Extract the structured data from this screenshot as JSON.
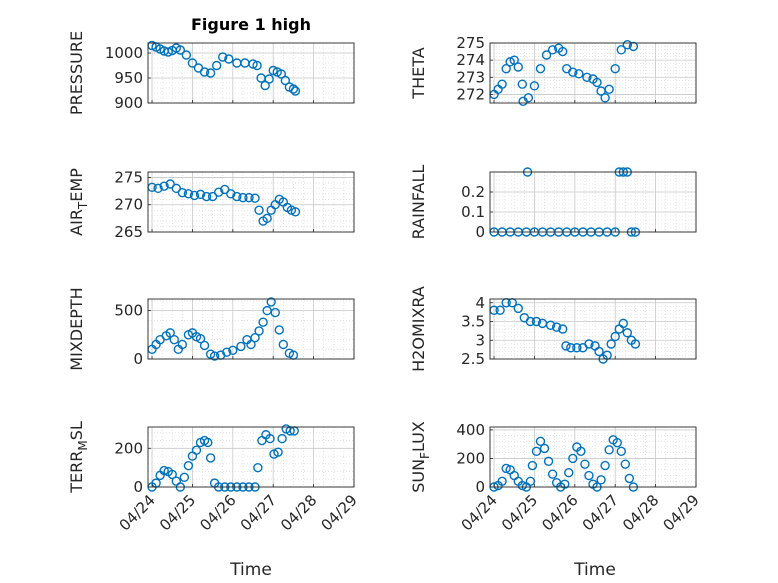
{
  "figure_title": "Figure 1 high",
  "x_label": "Time",
  "x_tick_labels": [
    "04/24",
    "04/25",
    "04/26",
    "04/27",
    "04/28",
    "04/29"
  ],
  "marker_color": "#0072BD",
  "chart_data": [
    {
      "type": "scatter",
      "name_main": "PRESSURE",
      "name_sub": "",
      "ylim": [
        900,
        1020
      ],
      "yticks": [
        900,
        950,
        1000
      ],
      "points": [
        [
          0.0,
          1015
        ],
        [
          0.1,
          1012
        ],
        [
          0.2,
          1008
        ],
        [
          0.3,
          1004
        ],
        [
          0.4,
          1002
        ],
        [
          0.5,
          1005
        ],
        [
          0.6,
          1010
        ],
        [
          0.7,
          1006
        ],
        [
          0.85,
          996
        ],
        [
          1.0,
          980
        ],
        [
          1.15,
          970
        ],
        [
          1.3,
          962
        ],
        [
          1.45,
          960
        ],
        [
          1.6,
          975
        ],
        [
          1.75,
          992
        ],
        [
          1.9,
          988
        ],
        [
          2.1,
          980
        ],
        [
          2.3,
          980
        ],
        [
          2.5,
          978
        ],
        [
          2.6,
          975
        ],
        [
          2.7,
          950
        ],
        [
          2.8,
          935
        ],
        [
          2.9,
          948
        ],
        [
          3.0,
          965
        ],
        [
          3.1,
          962
        ],
        [
          3.2,
          958
        ],
        [
          3.3,
          945
        ],
        [
          3.4,
          932
        ],
        [
          3.5,
          928
        ],
        [
          3.55,
          924
        ]
      ]
    },
    {
      "type": "scatter",
      "name_main": "THETA",
      "name_sub": "",
      "ylim": [
        271.5,
        275
      ],
      "yticks": [
        272,
        273,
        274,
        275
      ],
      "points": [
        [
          0.0,
          272.0
        ],
        [
          0.1,
          272.3
        ],
        [
          0.2,
          272.6
        ],
        [
          0.3,
          273.5
        ],
        [
          0.4,
          273.9
        ],
        [
          0.5,
          274.0
        ],
        [
          0.6,
          273.6
        ],
        [
          0.7,
          272.6
        ],
        [
          0.72,
          271.6
        ],
        [
          0.85,
          271.8
        ],
        [
          1.0,
          272.5
        ],
        [
          1.15,
          273.5
        ],
        [
          1.3,
          274.3
        ],
        [
          1.45,
          274.6
        ],
        [
          1.6,
          274.7
        ],
        [
          1.7,
          274.5
        ],
        [
          1.8,
          273.5
        ],
        [
          1.95,
          273.3
        ],
        [
          2.1,
          273.2
        ],
        [
          2.3,
          273.0
        ],
        [
          2.45,
          272.9
        ],
        [
          2.55,
          272.7
        ],
        [
          2.65,
          272.2
        ],
        [
          2.75,
          271.8
        ],
        [
          2.85,
          272.3
        ],
        [
          3.0,
          273.5
        ],
        [
          3.15,
          274.6
        ],
        [
          3.3,
          274.9
        ],
        [
          3.45,
          274.8
        ]
      ]
    },
    {
      "type": "scatter",
      "name_main": "AIR",
      "name_sub": "TEMP",
      "ylim": [
        265,
        276
      ],
      "yticks": [
        265,
        270,
        275
      ],
      "points": [
        [
          0.0,
          273.2
        ],
        [
          0.15,
          273.0
        ],
        [
          0.3,
          273.4
        ],
        [
          0.45,
          273.8
        ],
        [
          0.6,
          273.0
        ],
        [
          0.75,
          272.2
        ],
        [
          0.9,
          272.0
        ],
        [
          1.05,
          271.7
        ],
        [
          1.2,
          271.9
        ],
        [
          1.35,
          271.5
        ],
        [
          1.5,
          271.5
        ],
        [
          1.65,
          272.3
        ],
        [
          1.8,
          272.8
        ],
        [
          1.95,
          272.0
        ],
        [
          2.1,
          271.5
        ],
        [
          2.25,
          271.3
        ],
        [
          2.4,
          271.3
        ],
        [
          2.55,
          271.2
        ],
        [
          2.65,
          269.0
        ],
        [
          2.75,
          267.0
        ],
        [
          2.85,
          267.5
        ],
        [
          2.95,
          269.0
        ],
        [
          3.05,
          270.0
        ],
        [
          3.15,
          271.0
        ],
        [
          3.25,
          270.5
        ],
        [
          3.35,
          269.5
        ],
        [
          3.45,
          269.0
        ],
        [
          3.55,
          268.7
        ]
      ]
    },
    {
      "type": "scatter",
      "name_main": "RAINFALL",
      "name_sub": "",
      "ylim": [
        0,
        0.3
      ],
      "yticks": [
        0,
        0.1,
        0.2
      ],
      "points": [
        [
          0.0,
          0
        ],
        [
          0.2,
          0
        ],
        [
          0.4,
          0
        ],
        [
          0.6,
          0
        ],
        [
          0.8,
          0
        ],
        [
          0.83,
          0.3
        ],
        [
          1.0,
          0
        ],
        [
          1.2,
          0
        ],
        [
          1.4,
          0
        ],
        [
          1.6,
          0
        ],
        [
          1.8,
          0
        ],
        [
          2.0,
          0
        ],
        [
          2.2,
          0
        ],
        [
          2.4,
          0
        ],
        [
          2.6,
          0
        ],
        [
          2.8,
          0
        ],
        [
          3.0,
          0
        ],
        [
          3.1,
          0.3
        ],
        [
          3.2,
          0.3
        ],
        [
          3.3,
          0.3
        ],
        [
          3.4,
          0
        ],
        [
          3.5,
          0
        ]
      ]
    },
    {
      "type": "scatter",
      "name_main": "MIXDEPTH",
      "name_sub": "",
      "ylim": [
        0,
        620
      ],
      "yticks": [
        0,
        500
      ],
      "points": [
        [
          0.0,
          100
        ],
        [
          0.1,
          150
        ],
        [
          0.2,
          200
        ],
        [
          0.35,
          240
        ],
        [
          0.45,
          270
        ],
        [
          0.55,
          200
        ],
        [
          0.65,
          100
        ],
        [
          0.75,
          150
        ],
        [
          0.9,
          250
        ],
        [
          1.0,
          270
        ],
        [
          1.1,
          230
        ],
        [
          1.2,
          210
        ],
        [
          1.3,
          140
        ],
        [
          1.45,
          50
        ],
        [
          1.55,
          30
        ],
        [
          1.7,
          40
        ],
        [
          1.85,
          70
        ],
        [
          2.0,
          90
        ],
        [
          2.2,
          130
        ],
        [
          2.35,
          200
        ],
        [
          2.45,
          150
        ],
        [
          2.55,
          220
        ],
        [
          2.65,
          290
        ],
        [
          2.75,
          380
        ],
        [
          2.85,
          500
        ],
        [
          2.95,
          590
        ],
        [
          3.05,
          480
        ],
        [
          3.15,
          300
        ],
        [
          3.25,
          150
        ],
        [
          3.4,
          60
        ],
        [
          3.5,
          40
        ]
      ]
    },
    {
      "type": "scatter",
      "name_main": "H2OMIXRA",
      "name_sub": "",
      "ylim": [
        2.5,
        4.1
      ],
      "yticks": [
        2.5,
        3,
        3.5,
        4
      ],
      "points": [
        [
          0.0,
          3.8
        ],
        [
          0.15,
          3.8
        ],
        [
          0.3,
          4.0
        ],
        [
          0.45,
          4.0
        ],
        [
          0.6,
          3.85
        ],
        [
          0.75,
          3.6
        ],
        [
          0.9,
          3.5
        ],
        [
          1.05,
          3.5
        ],
        [
          1.2,
          3.45
        ],
        [
          1.4,
          3.4
        ],
        [
          1.55,
          3.35
        ],
        [
          1.7,
          3.3
        ],
        [
          1.78,
          2.85
        ],
        [
          1.9,
          2.8
        ],
        [
          2.05,
          2.8
        ],
        [
          2.2,
          2.8
        ],
        [
          2.35,
          2.9
        ],
        [
          2.5,
          2.85
        ],
        [
          2.6,
          2.7
        ],
        [
          2.7,
          2.5
        ],
        [
          2.8,
          2.6
        ],
        [
          2.9,
          2.9
        ],
        [
          3.0,
          3.1
        ],
        [
          3.1,
          3.3
        ],
        [
          3.2,
          3.45
        ],
        [
          3.3,
          3.2
        ],
        [
          3.4,
          3.0
        ],
        [
          3.5,
          2.9
        ]
      ]
    },
    {
      "type": "scatter",
      "name_main": "TERR",
      "name_sub": "MSL",
      "ylim": [
        0,
        310
      ],
      "yticks": [
        0,
        200
      ],
      "points": [
        [
          0.0,
          0
        ],
        [
          0.1,
          20
        ],
        [
          0.2,
          60
        ],
        [
          0.3,
          85
        ],
        [
          0.4,
          80
        ],
        [
          0.5,
          65
        ],
        [
          0.6,
          30
        ],
        [
          0.7,
          0
        ],
        [
          0.8,
          50
        ],
        [
          0.9,
          110
        ],
        [
          1.0,
          160
        ],
        [
          1.1,
          190
        ],
        [
          1.2,
          230
        ],
        [
          1.3,
          240
        ],
        [
          1.38,
          230
        ],
        [
          1.45,
          150
        ],
        [
          1.55,
          20
        ],
        [
          1.65,
          0
        ],
        [
          1.8,
          0
        ],
        [
          1.95,
          0
        ],
        [
          2.1,
          0
        ],
        [
          2.25,
          0
        ],
        [
          2.4,
          0
        ],
        [
          2.55,
          0
        ],
        [
          2.62,
          100
        ],
        [
          2.72,
          240
        ],
        [
          2.82,
          270
        ],
        [
          2.92,
          250
        ],
        [
          3.02,
          170
        ],
        [
          3.12,
          180
        ],
        [
          3.22,
          250
        ],
        [
          3.32,
          300
        ],
        [
          3.42,
          290
        ],
        [
          3.52,
          290
        ]
      ]
    },
    {
      "type": "scatter",
      "name_main": "SUN",
      "name_sub": "FLUX",
      "ylim": [
        0,
        420
      ],
      "yticks": [
        0,
        200,
        400
      ],
      "points": [
        [
          0.0,
          0
        ],
        [
          0.1,
          10
        ],
        [
          0.2,
          40
        ],
        [
          0.3,
          130
        ],
        [
          0.4,
          120
        ],
        [
          0.5,
          80
        ],
        [
          0.6,
          40
        ],
        [
          0.7,
          10
        ],
        [
          0.8,
          0
        ],
        [
          0.9,
          40
        ],
        [
          0.95,
          150
        ],
        [
          1.05,
          250
        ],
        [
          1.15,
          320
        ],
        [
          1.25,
          270
        ],
        [
          1.35,
          180
        ],
        [
          1.45,
          90
        ],
        [
          1.55,
          30
        ],
        [
          1.65,
          0
        ],
        [
          1.75,
          20
        ],
        [
          1.85,
          100
        ],
        [
          1.95,
          200
        ],
        [
          2.05,
          280
        ],
        [
          2.15,
          250
        ],
        [
          2.25,
          160
        ],
        [
          2.35,
          80
        ],
        [
          2.45,
          20
        ],
        [
          2.55,
          0
        ],
        [
          2.65,
          50
        ],
        [
          2.75,
          150
        ],
        [
          2.85,
          260
        ],
        [
          2.95,
          330
        ],
        [
          3.05,
          310
        ],
        [
          3.15,
          250
        ],
        [
          3.25,
          160
        ],
        [
          3.35,
          60
        ],
        [
          3.45,
          0
        ]
      ]
    }
  ]
}
